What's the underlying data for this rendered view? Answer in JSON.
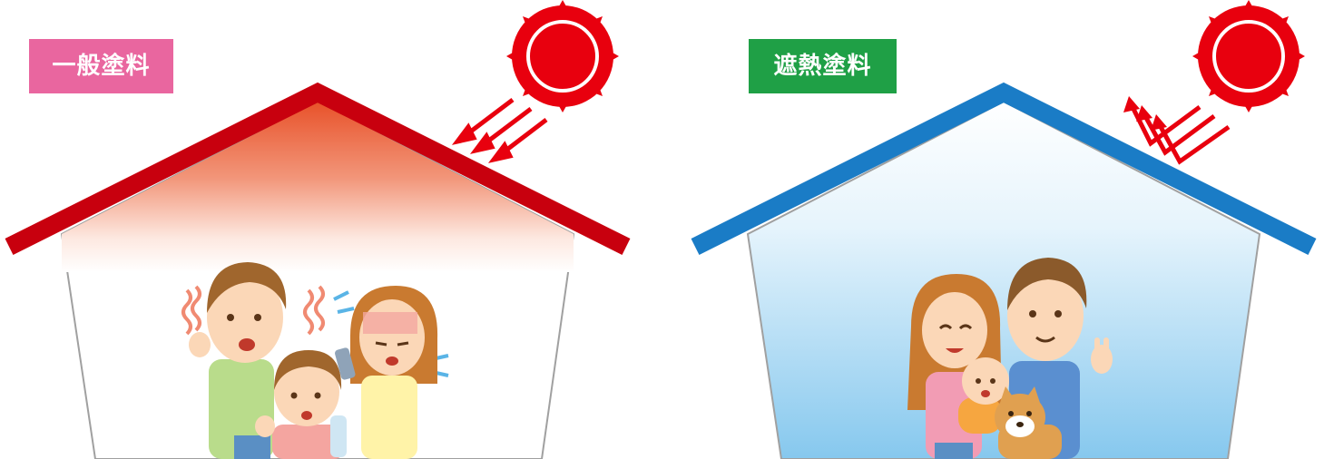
{
  "panels": {
    "left": {
      "label": "一般塗料",
      "label_color": "#e9669f",
      "roof_color": "#c8000e",
      "interior_top_color": "#e85a2e"
    },
    "right": {
      "label": "遮熱塗料",
      "label_color": "#1fa046",
      "roof_color": "#1a7cc6",
      "interior_bottom_color": "#86c8ee"
    }
  },
  "icons": [
    "sun-icon",
    "heat-arrow-icon",
    "reflect-arrow-icon",
    "heat-wave-icon",
    "sweat-drop-icon",
    "dog-icon"
  ]
}
